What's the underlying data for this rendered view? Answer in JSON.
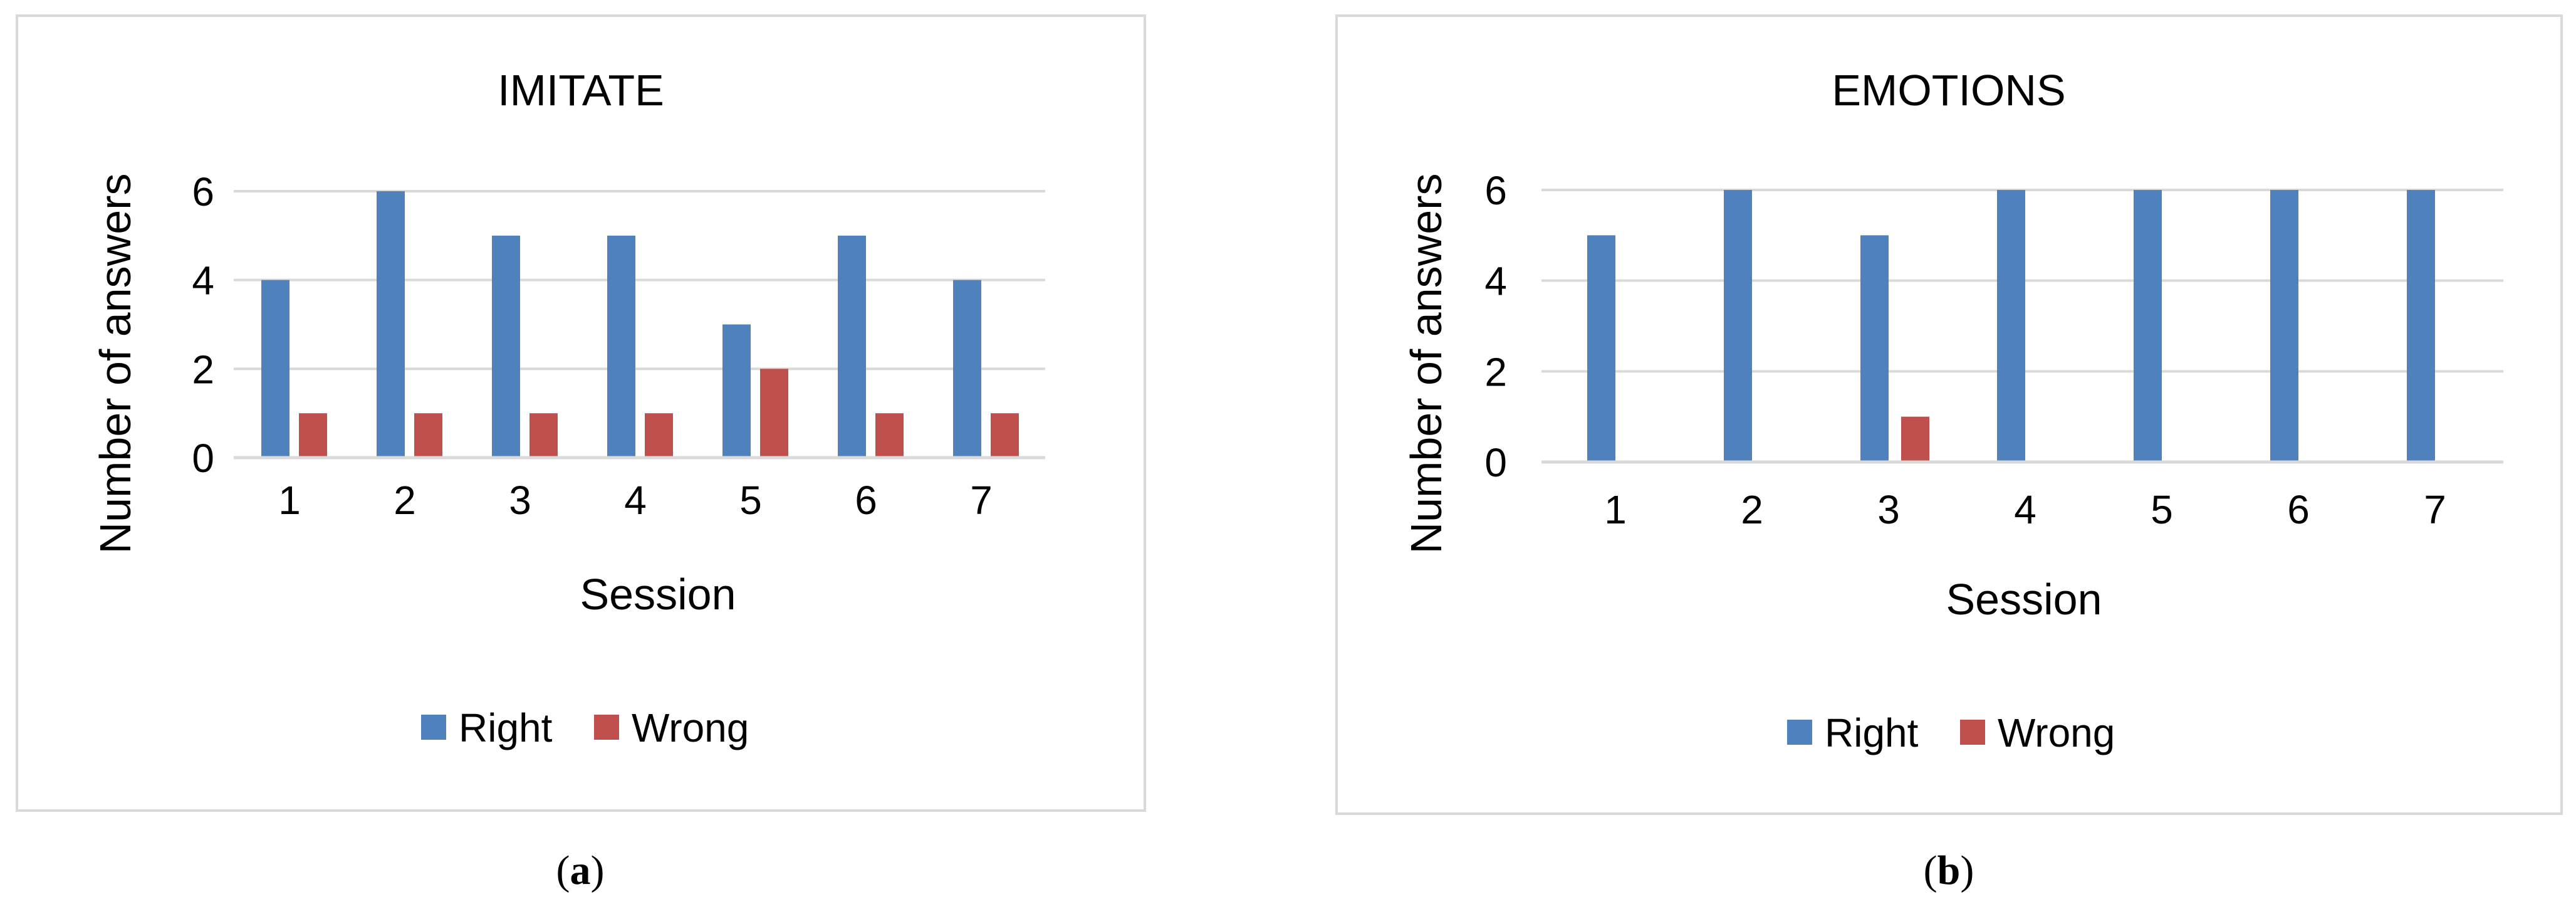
{
  "panels": [
    {
      "label": "(a)",
      "label_parts": [
        "(",
        "a",
        ")"
      ],
      "legend": [
        {
          "name": "Right",
          "color": "#4F81BD"
        },
        {
          "name": "Wrong",
          "color": "#C0504D"
        }
      ]
    },
    {
      "label": "(b)",
      "label_parts": [
        "(",
        "b",
        ")"
      ],
      "legend": [
        {
          "name": "Right",
          "color": "#4F81BD"
        },
        {
          "name": "Wrong",
          "color": "#C0504D"
        }
      ]
    }
  ],
  "chart_data": [
    {
      "type": "bar",
      "title": "IMITATE",
      "xlabel": "Session",
      "ylabel": "Number of answers",
      "categories": [
        "1",
        "2",
        "3",
        "4",
        "5",
        "6",
        "7"
      ],
      "series": [
        {
          "name": "Right",
          "color": "#4F81BD",
          "values": [
            4,
            6,
            5,
            5,
            3,
            5,
            4
          ]
        },
        {
          "name": "Wrong",
          "color": "#C0504D",
          "values": [
            1,
            1,
            1,
            1,
            2,
            1,
            1
          ]
        }
      ],
      "ylim": [
        0,
        6
      ],
      "yticks": [
        "0",
        "2",
        "4",
        "6"
      ],
      "grid": true,
      "legend_position": "bottom"
    },
    {
      "type": "bar",
      "title": "EMOTIONS",
      "xlabel": "Session",
      "ylabel": "Number of answers",
      "categories": [
        "1",
        "2",
        "3",
        "4",
        "5",
        "6",
        "7"
      ],
      "series": [
        {
          "name": "Right",
          "color": "#4F81BD",
          "values": [
            5,
            6,
            5,
            6,
            6,
            6,
            6
          ]
        },
        {
          "name": "Wrong",
          "color": "#C0504D",
          "values": [
            0,
            0,
            1,
            0,
            0,
            0,
            0
          ]
        }
      ],
      "ylim": [
        0,
        6
      ],
      "yticks": [
        "0",
        "2",
        "4",
        "6"
      ],
      "grid": true,
      "legend_position": "bottom"
    }
  ]
}
